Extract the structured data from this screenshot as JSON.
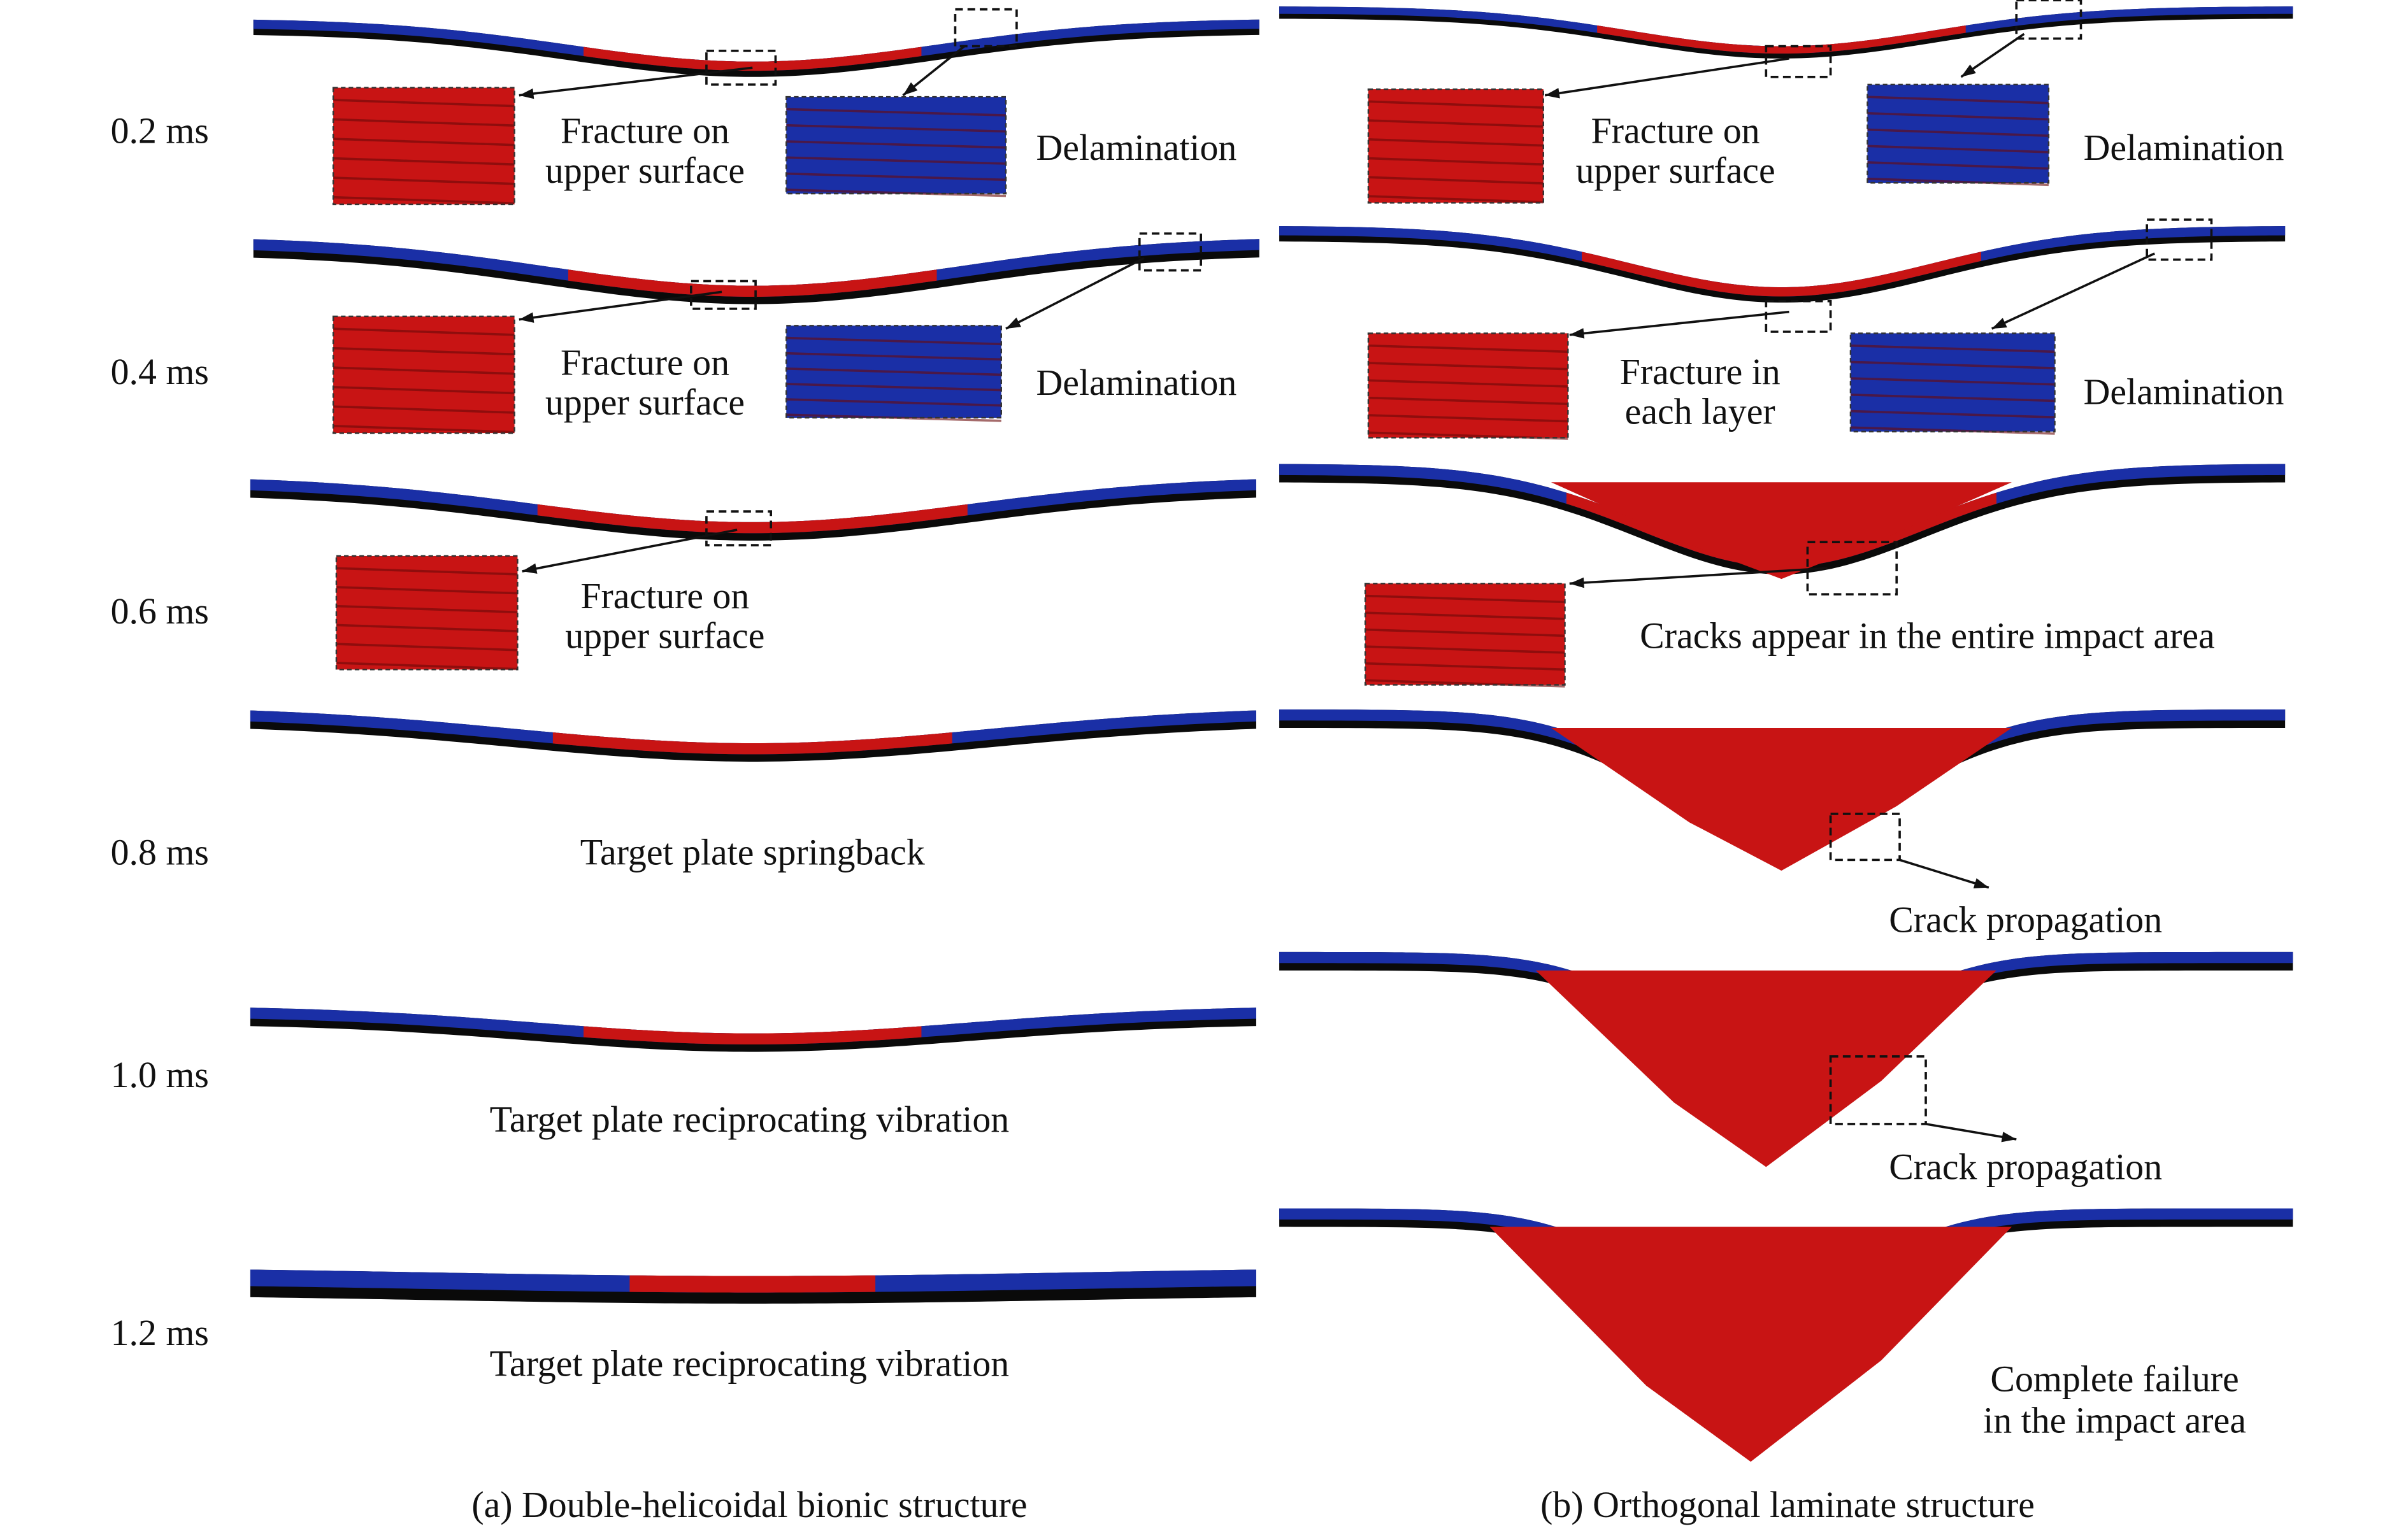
{
  "colors": {
    "plate_bottom": "#0a0a0a",
    "upper_layer": "#1a2fa6",
    "damage": "#c81414",
    "background": "#ffffff"
  },
  "times": [
    "0.2 ms",
    "0.4 ms",
    "0.6 ms",
    "0.8 ms",
    "1.0 ms",
    "1.2 ms"
  ],
  "left": {
    "caption": "(a) Double-helicoidal bionic structure",
    "t02": {
      "fracture_1": "Fracture on",
      "fracture_2": "upper surface",
      "delam": "Delamination"
    },
    "t04": {
      "fracture_1": "Fracture on",
      "fracture_2": "upper surface",
      "delam": "Delamination"
    },
    "t06": {
      "fracture_1": "Fracture on",
      "fracture_2": "upper surface"
    },
    "t08": {
      "note": "Target plate springback"
    },
    "t10": {
      "note": "Target plate reciprocating vibration"
    },
    "t12": {
      "note": "Target plate reciprocating vibration"
    }
  },
  "right": {
    "caption": "(b) Orthogonal laminate structure",
    "t02": {
      "fracture_1": "Fracture on",
      "fracture_2": "upper surface",
      "delam": "Delamination"
    },
    "t04": {
      "fracture_1": "Fracture in",
      "fracture_2": "each layer",
      "delam": "Delamination"
    },
    "t06": {
      "note": "Cracks appear in the entire impact area"
    },
    "t08": {
      "note": "Crack propagation"
    },
    "t10": {
      "note": "Crack propagation"
    },
    "t12": {
      "note_1": "Complete failure",
      "note_2": "in the impact area"
    }
  }
}
